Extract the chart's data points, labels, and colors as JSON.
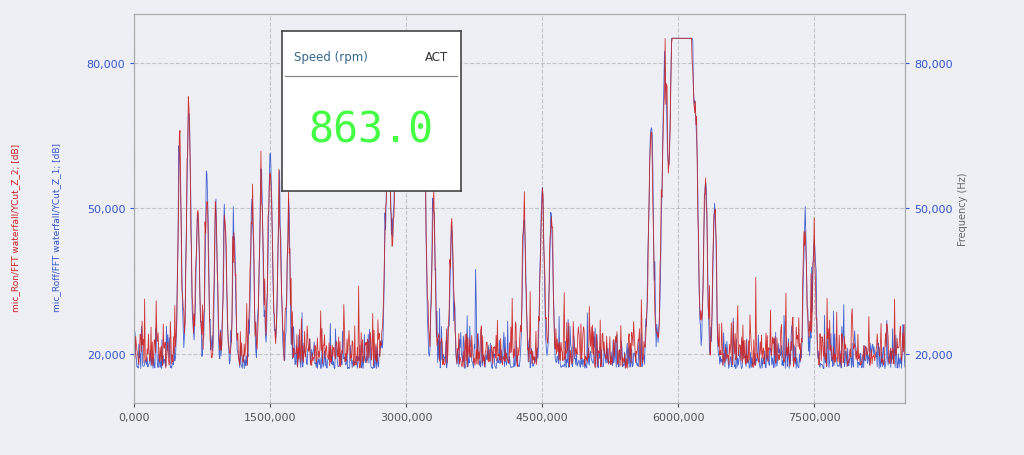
{
  "title": "",
  "xlabel": "",
  "ylabel_left_red": "mic_Ron/FFT waterfall/YCut_Z_2; [dB]",
  "ylabel_left_blue": "mic_Roff/FFT waterfall/YCut_Z_1; [dB]",
  "ylabel_right": "Frequency (Hz)",
  "ylim": [
    10000,
    90000
  ],
  "xlim": [
    0,
    8500000
  ],
  "yticks": [
    20000,
    50000,
    80000
  ],
  "xticks": [
    0,
    1500000,
    3000000,
    4500000,
    6000000,
    7500000
  ],
  "xticklabels": [
    "0,000",
    "1500,000",
    "3000,000",
    "4500,000",
    "6000,000",
    "7500,000"
  ],
  "yticklabels": [
    "20,000",
    "50,000",
    "80,000"
  ],
  "color_blue": "#3355cc",
  "color_red": "#cc2222",
  "background_color": "#eeeef5",
  "grid_color": "#aaaaaa",
  "inset_title": "Speed (rpm)",
  "inset_subtitle": "ACT",
  "inset_value": "863.0",
  "inset_value_color": "#44ff44",
  "seed": 42,
  "n_points": 1200
}
